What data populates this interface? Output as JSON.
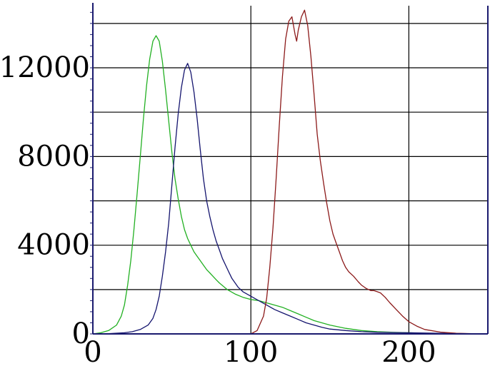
{
  "chart_data": {
    "type": "line",
    "title": "",
    "xlabel": "",
    "ylabel": "",
    "xlim": [
      0,
      250
    ],
    "ylim": [
      0,
      14800
    ],
    "x_ticks": [
      0,
      100,
      200
    ],
    "x_tick_labels": [
      "0",
      "100",
      "200"
    ],
    "y_ticks": [
      0,
      4000,
      8000,
      12000
    ],
    "y_tick_labels": [
      "0",
      "4000",
      "8000",
      "12000"
    ],
    "x_gridlines": [
      0,
      100,
      200,
      250
    ],
    "y_gridlines": [
      0,
      2000,
      4000,
      6000,
      8000,
      10000,
      12000,
      14000
    ],
    "grid": true,
    "legend": "none",
    "series": [
      {
        "color": "#22b022",
        "points": [
          [
            0,
            0
          ],
          [
            5,
            50
          ],
          [
            10,
            150
          ],
          [
            15,
            400
          ],
          [
            18,
            800
          ],
          [
            20,
            1300
          ],
          [
            22,
            2200
          ],
          [
            24,
            3300
          ],
          [
            26,
            4700
          ],
          [
            28,
            6300
          ],
          [
            30,
            8000
          ],
          [
            32,
            9700
          ],
          [
            34,
            11200
          ],
          [
            36,
            12400
          ],
          [
            38,
            13200
          ],
          [
            40,
            13450
          ],
          [
            42,
            13200
          ],
          [
            44,
            12300
          ],
          [
            46,
            11000
          ],
          [
            48,
            9600
          ],
          [
            50,
            8200
          ],
          [
            52,
            7000
          ],
          [
            54,
            6100
          ],
          [
            56,
            5300
          ],
          [
            58,
            4700
          ],
          [
            60,
            4300
          ],
          [
            62,
            4000
          ],
          [
            64,
            3700
          ],
          [
            66,
            3500
          ],
          [
            68,
            3300
          ],
          [
            70,
            3100
          ],
          [
            72,
            2900
          ],
          [
            74,
            2750
          ],
          [
            76,
            2600
          ],
          [
            78,
            2450
          ],
          [
            80,
            2300
          ],
          [
            85,
            2000
          ],
          [
            90,
            1800
          ],
          [
            95,
            1650
          ],
          [
            100,
            1550
          ],
          [
            105,
            1500
          ],
          [
            110,
            1400
          ],
          [
            115,
            1300
          ],
          [
            120,
            1200
          ],
          [
            125,
            1050
          ],
          [
            130,
            900
          ],
          [
            135,
            750
          ],
          [
            140,
            600
          ],
          [
            150,
            400
          ],
          [
            160,
            250
          ],
          [
            170,
            150
          ],
          [
            180,
            100
          ],
          [
            190,
            70
          ],
          [
            200,
            50
          ],
          [
            210,
            30
          ],
          [
            220,
            20
          ],
          [
            230,
            10
          ],
          [
            240,
            5
          ],
          [
            250,
            0
          ]
        ]
      },
      {
        "color": "#14146e",
        "points": [
          [
            0,
            0
          ],
          [
            10,
            10
          ],
          [
            20,
            50
          ],
          [
            25,
            100
          ],
          [
            30,
            200
          ],
          [
            35,
            400
          ],
          [
            38,
            700
          ],
          [
            40,
            1100
          ],
          [
            42,
            1700
          ],
          [
            44,
            2600
          ],
          [
            46,
            3700
          ],
          [
            48,
            5000
          ],
          [
            50,
            6700
          ],
          [
            52,
            8400
          ],
          [
            54,
            9900
          ],
          [
            56,
            11100
          ],
          [
            58,
            11900
          ],
          [
            60,
            12200
          ],
          [
            62,
            11800
          ],
          [
            64,
            10900
          ],
          [
            66,
            9700
          ],
          [
            68,
            8300
          ],
          [
            70,
            7000
          ],
          [
            72,
            6000
          ],
          [
            74,
            5300
          ],
          [
            76,
            4700
          ],
          [
            78,
            4200
          ],
          [
            80,
            3800
          ],
          [
            82,
            3400
          ],
          [
            84,
            3100
          ],
          [
            86,
            2800
          ],
          [
            88,
            2500
          ],
          [
            90,
            2300
          ],
          [
            92,
            2100
          ],
          [
            95,
            1900
          ],
          [
            100,
            1700
          ],
          [
            105,
            1500
          ],
          [
            110,
            1300
          ],
          [
            115,
            1100
          ],
          [
            120,
            950
          ],
          [
            125,
            800
          ],
          [
            130,
            650
          ],
          [
            135,
            500
          ],
          [
            140,
            400
          ],
          [
            145,
            300
          ],
          [
            150,
            220
          ],
          [
            160,
            150
          ],
          [
            170,
            100
          ],
          [
            180,
            70
          ],
          [
            200,
            50
          ],
          [
            220,
            30
          ],
          [
            250,
            0
          ]
        ]
      },
      {
        "color": "#8c1a1a",
        "points": [
          [
            0,
            0
          ],
          [
            50,
            0
          ],
          [
            90,
            0
          ],
          [
            100,
            0
          ],
          [
            104,
            150
          ],
          [
            108,
            800
          ],
          [
            110,
            1600
          ],
          [
            112,
            3000
          ],
          [
            114,
            4800
          ],
          [
            116,
            7000
          ],
          [
            118,
            9400
          ],
          [
            120,
            11600
          ],
          [
            122,
            13300
          ],
          [
            124,
            14100
          ],
          [
            126,
            14300
          ],
          [
            128,
            13500
          ],
          [
            129,
            13200
          ],
          [
            130,
            13700
          ],
          [
            132,
            14300
          ],
          [
            134,
            14600
          ],
          [
            136,
            13900
          ],
          [
            138,
            12500
          ],
          [
            140,
            10800
          ],
          [
            142,
            9000
          ],
          [
            144,
            7800
          ],
          [
            146,
            6800
          ],
          [
            148,
            5900
          ],
          [
            150,
            5100
          ],
          [
            152,
            4500
          ],
          [
            154,
            4100
          ],
          [
            156,
            3700
          ],
          [
            158,
            3300
          ],
          [
            160,
            3000
          ],
          [
            162,
            2800
          ],
          [
            165,
            2600
          ],
          [
            168,
            2350
          ],
          [
            170,
            2200
          ],
          [
            173,
            2050
          ],
          [
            176,
            1950
          ],
          [
            178,
            1950
          ],
          [
            180,
            1900
          ],
          [
            182,
            1850
          ],
          [
            185,
            1650
          ],
          [
            188,
            1400
          ],
          [
            192,
            1100
          ],
          [
            196,
            800
          ],
          [
            200,
            550
          ],
          [
            205,
            350
          ],
          [
            210,
            200
          ],
          [
            220,
            80
          ],
          [
            230,
            30
          ],
          [
            240,
            10
          ],
          [
            250,
            0
          ]
        ]
      }
    ]
  }
}
